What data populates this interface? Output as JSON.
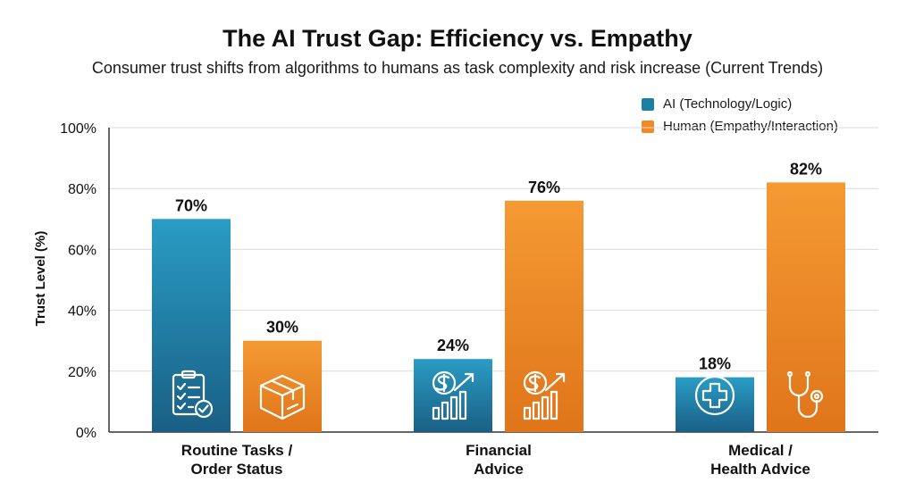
{
  "chart_data": {
    "type": "bar",
    "title": "The AI Trust Gap: Efficiency vs. Empathy",
    "subtitle": "Consumer trust shifts from algorithms to humans as task complexity and risk increase (Current Trends)",
    "ylabel": "Trust Level (%)",
    "xlabel": "",
    "ylim": [
      0,
      100
    ],
    "yticks": [
      "0%",
      "20%",
      "40%",
      "60%",
      "80%",
      "100%"
    ],
    "grid": true,
    "legend_position": "top-right",
    "categories": [
      [
        "Routine Tasks /",
        "Order Status"
      ],
      [
        "Financial",
        "Advice"
      ],
      [
        "Medical /",
        "Health Advice"
      ]
    ],
    "series": [
      {
        "name": "AI (Technology/Logic)",
        "values": [
          70,
          24,
          18
        ],
        "labels": [
          "70%",
          "24%",
          "18%"
        ],
        "color": "#1f7ea3",
        "icons": [
          "clipboard-check-icon",
          "dollar-growth-chart-icon",
          "medical-cross-icon"
        ]
      },
      {
        "name": "Human (Empathy/Interaction)",
        "values": [
          30,
          76,
          82
        ],
        "labels": [
          "30%",
          "76%",
          "82%"
        ],
        "color": "#f08a24",
        "icons": [
          "package-box-icon",
          "dollar-growth-chart-icon",
          "stethoscope-icon"
        ]
      }
    ]
  }
}
